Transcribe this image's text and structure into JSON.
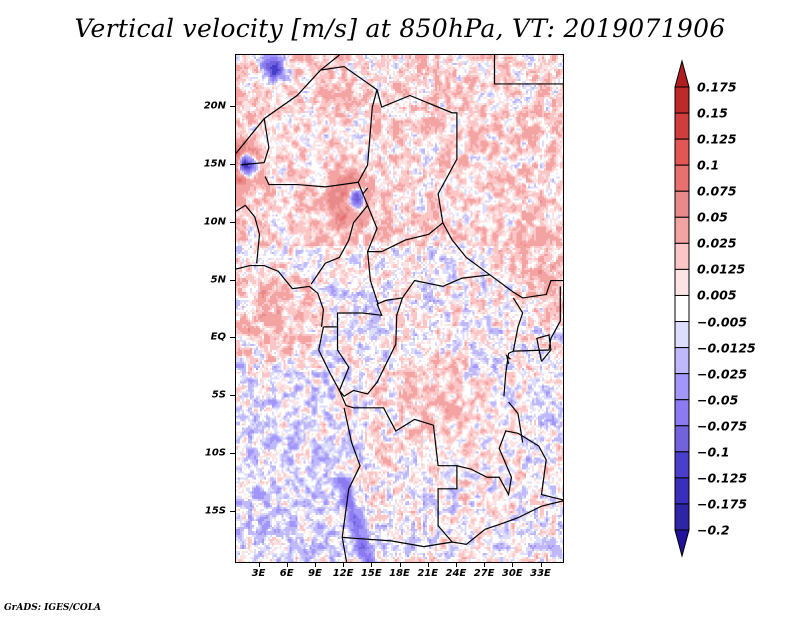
{
  "chart_data": {
    "type": "heatmap",
    "title": "Vertical velocity [m/s] at 850hPa, VT: 2019071906",
    "variable": "Vertical velocity",
    "units": "m/s",
    "level": "850hPa",
    "valid_time": "2019071906",
    "xlabel": "",
    "ylabel": "",
    "x_range_deg": [
      0.5,
      35.5
    ],
    "y_range_deg": [
      -19.5,
      24.5
    ],
    "x_ticks": [
      {
        "value": 3,
        "label": "3E"
      },
      {
        "value": 6,
        "label": "6E"
      },
      {
        "value": 9,
        "label": "9E"
      },
      {
        "value": 12,
        "label": "12E"
      },
      {
        "value": 15,
        "label": "15E"
      },
      {
        "value": 18,
        "label": "18E"
      },
      {
        "value": 21,
        "label": "21E"
      },
      {
        "value": 24,
        "label": "24E"
      },
      {
        "value": 27,
        "label": "27E"
      },
      {
        "value": 30,
        "label": "30E"
      },
      {
        "value": 33,
        "label": "33E"
      }
    ],
    "y_ticks": [
      {
        "value": 20,
        "label": "20N"
      },
      {
        "value": 15,
        "label": "15N"
      },
      {
        "value": 10,
        "label": "10N"
      },
      {
        "value": 5,
        "label": "5N"
      },
      {
        "value": 0,
        "label": "EQ"
      },
      {
        "value": -5,
        "label": "5S"
      },
      {
        "value": -10,
        "label": "10S"
      },
      {
        "value": -15,
        "label": "15S"
      }
    ],
    "colorbar": {
      "levels": [
        "0.175",
        "0.15",
        "0.125",
        "0.1",
        "0.075",
        "0.05",
        "0.025",
        "0.0125",
        "0.005",
        "-0.005",
        "-0.0125",
        "-0.025",
        "-0.05",
        "-0.075",
        "-0.1",
        "-0.125",
        "-0.175",
        "-0.2"
      ],
      "colors": [
        "#b01e22",
        "#be2a2c",
        "#d13c3c",
        "#e45556",
        "#e8706f",
        "#e88a8a",
        "#f4a3a3",
        "#fcc6c6",
        "#fde4e4",
        "#ffffff",
        "#dcdcfc",
        "#bfb8fb",
        "#a396fa",
        "#8b7af2",
        "#7262dc",
        "#4a3fcc",
        "#3a2fbc",
        "#2e24a6",
        "#22119a"
      ],
      "extend": "both",
      "orientation": "vertical",
      "placement": "right"
    },
    "features": [
      {
        "description": "Strong paired up/down couplets (convective cells) near 1E 15N and 13E 12N"
      },
      {
        "description": "Broad weak ascent (red) over Gulf of Guinea near 0-5N, 0-8E"
      },
      {
        "description": "Ascent bands over DR Congo around 20-27E, 5S-8S and western Ethiopia/Sudan highlands"
      },
      {
        "description": "Descent streaks along Angola coast (~12-14E, 14-18S) and east African rift near 29E"
      }
    ],
    "map_overlays": [
      "country borders",
      "coastlines",
      "lakes"
    ]
  },
  "footer": {
    "credit": "GrADS: IGES/COLA"
  }
}
